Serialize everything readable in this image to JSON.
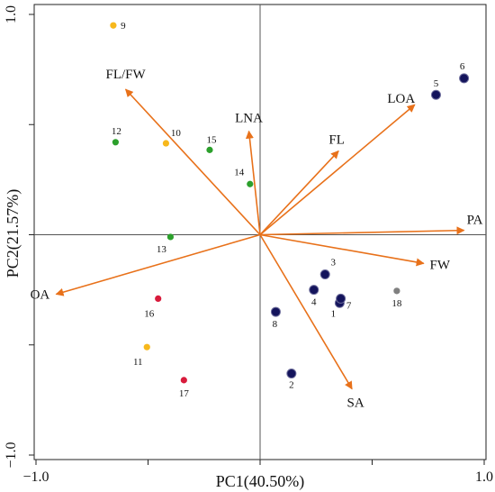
{
  "chart_data": {
    "type": "scatter",
    "subtype": "pca-biplot",
    "xlabel": "PC1(40.50%)",
    "ylabel": "PC2(21.57%)",
    "xlim": [
      -1.0,
      1.0
    ],
    "ylim": [
      -1.0,
      1.0
    ],
    "xticks": [
      {
        "value": -1.0,
        "label": "−1.0"
      },
      {
        "value": 1.0,
        "label": "1.0"
      }
    ],
    "yticks": [
      {
        "value": -1.0,
        "label": "−1.0"
      },
      {
        "value": 1.0,
        "label": "1.0"
      }
    ],
    "minor_ticks": [
      -0.5,
      0.0,
      0.5
    ],
    "zero_lines": true,
    "grid": false,
    "colors": {
      "vector": "#E8711A",
      "navy": "#14145C",
      "green": "#2CA02C",
      "yellow": "#F7B81C",
      "red": "#D81B3C",
      "gray": "#808080"
    },
    "vectors": [
      {
        "label": "FL/FW",
        "x": -0.6,
        "y": 0.66
      },
      {
        "label": "LNA",
        "x": -0.05,
        "y": 0.47
      },
      {
        "label": "LOA",
        "x": 0.69,
        "y": 0.59
      },
      {
        "label": "FL",
        "x": 0.35,
        "y": 0.38
      },
      {
        "label": "PA",
        "x": 0.91,
        "y": 0.02
      },
      {
        "label": "FW",
        "x": 0.73,
        "y": -0.13
      },
      {
        "label": "SA",
        "x": 0.41,
        "y": -0.7
      },
      {
        "label": "OA",
        "x": -0.91,
        "y": -0.27
      }
    ],
    "points": [
      {
        "label": "1",
        "x": 0.355,
        "y": -0.31,
        "group": "navy"
      },
      {
        "label": "2",
        "x": 0.14,
        "y": -0.63,
        "group": "navy"
      },
      {
        "label": "3",
        "x": 0.29,
        "y": -0.18,
        "group": "navy"
      },
      {
        "label": "4",
        "x": 0.24,
        "y": -0.25,
        "group": "navy"
      },
      {
        "label": "5",
        "x": 0.785,
        "y": 0.635,
        "group": "navy"
      },
      {
        "label": "6",
        "x": 0.91,
        "y": 0.71,
        "group": "navy"
      },
      {
        "label": "7",
        "x": 0.36,
        "y": -0.29,
        "group": "navy"
      },
      {
        "label": "8",
        "x": 0.07,
        "y": -0.35,
        "group": "navy"
      },
      {
        "label": "9",
        "x": -0.655,
        "y": 0.95,
        "group": "yellow"
      },
      {
        "label": "10",
        "x": -0.42,
        "y": 0.415,
        "group": "yellow"
      },
      {
        "label": "11",
        "x": -0.505,
        "y": -0.51,
        "group": "yellow"
      },
      {
        "label": "12",
        "x": -0.645,
        "y": 0.42,
        "group": "green"
      },
      {
        "label": "13",
        "x": -0.4,
        "y": -0.01,
        "group": "green"
      },
      {
        "label": "14",
        "x": -0.045,
        "y": 0.23,
        "group": "green"
      },
      {
        "label": "15",
        "x": -0.225,
        "y": 0.385,
        "group": "green"
      },
      {
        "label": "16",
        "x": -0.455,
        "y": -0.29,
        "group": "red"
      },
      {
        "label": "17",
        "x": -0.34,
        "y": -0.66,
        "group": "red"
      },
      {
        "label": "18",
        "x": 0.61,
        "y": -0.255,
        "group": "gray"
      }
    ]
  }
}
